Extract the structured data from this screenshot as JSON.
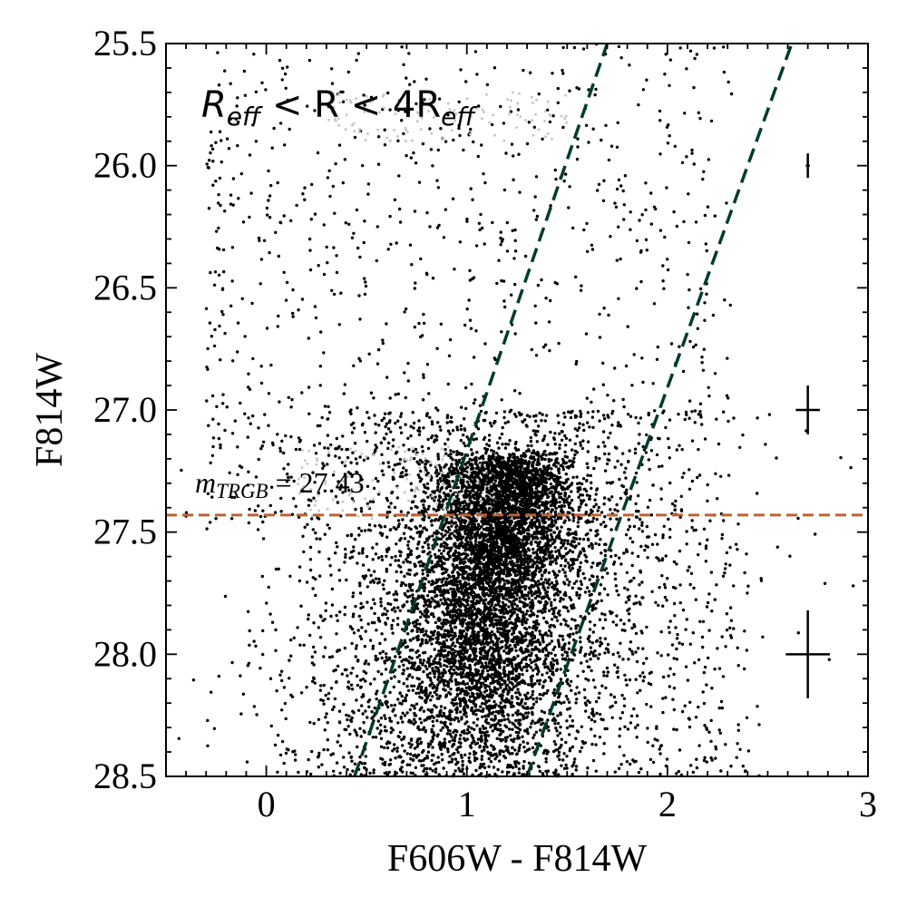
{
  "chart_data": {
    "type": "scatter",
    "title": "",
    "xlabel": "F606W - F814W",
    "ylabel": "F814W",
    "xlim": [
      -0.5,
      3.0
    ],
    "ylim": [
      28.5,
      25.5
    ],
    "y_inverted": true,
    "xticks": [
      0,
      1,
      2,
      3
    ],
    "xtick_labels": [
      "0",
      "1",
      "2",
      "3"
    ],
    "yticks": [
      25.5,
      26.0,
      26.5,
      27.0,
      27.5,
      28.0,
      28.5
    ],
    "ytick_labels": [
      "25.5",
      "26.0",
      "26.5",
      "27.0",
      "27.5",
      "28.0",
      "28.5"
    ],
    "region_label": {
      "base": "R",
      "sub1": "eff",
      "mid": " < R < 4R",
      "sub2": "eff"
    },
    "trgb": {
      "label_var": "m",
      "label_sub": "TRGB",
      "label_value": " = 27.43",
      "value": 27.43,
      "color": "#c0622d"
    },
    "selection_lines": {
      "color": "#003b2e",
      "lines": [
        {
          "x": [
            0.44,
            1.7
          ],
          "y": [
            28.5,
            25.5
          ]
        },
        {
          "x": [
            1.3,
            2.62
          ],
          "y": [
            28.5,
            25.5
          ]
        }
      ]
    },
    "error_bars": [
      {
        "mag": 26.0,
        "xerr": 0.01,
        "yerr": 0.05
      },
      {
        "mag": 27.0,
        "xerr": 0.06,
        "yerr": 0.1
      },
      {
        "mag": 28.0,
        "xerr": 0.11,
        "yerr": 0.18
      }
    ],
    "sources": {
      "color": "#000000",
      "n_points_approx": 9000,
      "main_locus": {
        "color_at_28.5": 1.0,
        "color_at_27.4": 1.18,
        "width_faint": 0.32,
        "width_bright": 0.22,
        "density_peak_mag": 28.3
      },
      "background_spread_color_range": [
        -0.3,
        2.9
      ],
      "contaminant_gray_groups": [
        {
          "color": "#c8c8c8",
          "center": [
            0.65,
            27.3
          ],
          "extent": [
            0.5,
            0.15
          ]
        },
        {
          "color": "#c8c8c8",
          "center": [
            0.9,
            25.8
          ],
          "extent": [
            0.6,
            0.1
          ]
        }
      ]
    }
  }
}
